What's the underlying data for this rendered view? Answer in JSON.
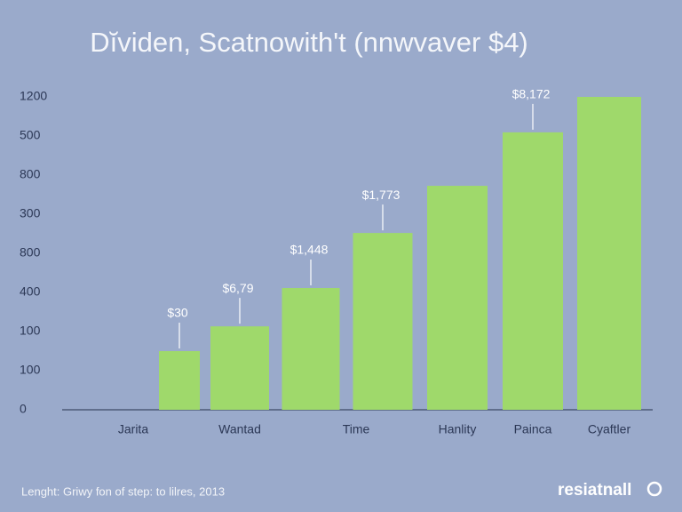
{
  "chart_data": {
    "type": "bar",
    "title": "Dĭviden, Scatnowith't (nnwvaver $4)",
    "footnote": "Lenght: Griwy fon of step: to lilres, 2013",
    "brand": "resiatnall",
    "categories": [
      "Jarita",
      "Wantad",
      null,
      "Time",
      "Hanlity",
      "Painca",
      "Cyaftler"
    ],
    "values": [
      225,
      320,
      467,
      678,
      859,
      1064,
      1200
    ],
    "annotations": [
      "$30",
      "$6,79",
      "$1,448",
      "$1,773",
      null,
      "$8,172",
      null
    ],
    "color": "#9fd96b",
    "ylim": [
      0,
      1200
    ],
    "yticks": [
      0,
      {
        "value": 150,
        "label": "100"
      },
      {
        "value": 300,
        "label": "100"
      },
      {
        "value": 450,
        "label": "400"
      },
      {
        "value": 600,
        "label": "800"
      },
      {
        "value": 750,
        "label": "300"
      },
      {
        "value": 900,
        "label": "800"
      },
      {
        "value": 1050,
        "label": "500"
      },
      1200
    ],
    "grid": false
  }
}
